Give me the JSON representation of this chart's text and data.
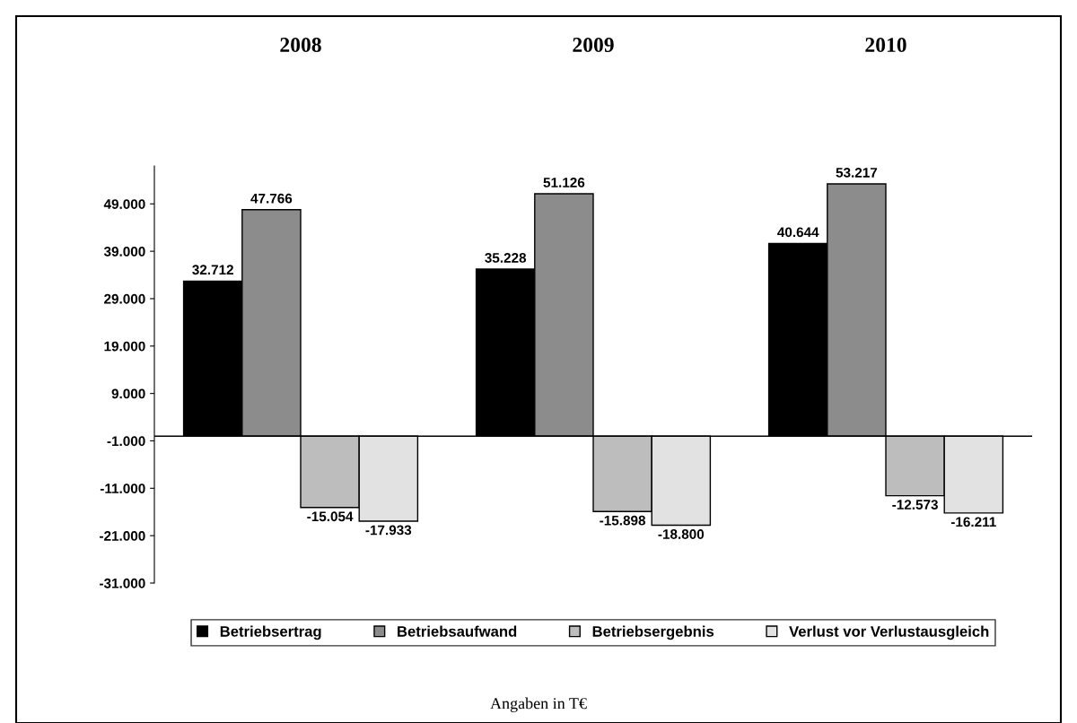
{
  "chart_data": {
    "type": "bar",
    "categories": [
      "2008",
      "2009",
      "2010"
    ],
    "series": [
      {
        "name": "Betriebsertrag",
        "color": "#000000",
        "values": [
          32712,
          35228,
          40644
        ],
        "value_labels": [
          "32.712",
          "35.228",
          "40.644"
        ]
      },
      {
        "name": "Betriebsaufwand",
        "color": "#8c8c8c",
        "values": [
          47766,
          51126,
          53217
        ],
        "value_labels": [
          "47.766",
          "51.126",
          "53.217"
        ]
      },
      {
        "name": "Betriebsergebnis",
        "color": "#bdbdbd",
        "values": [
          -15054,
          -15898,
          -12573
        ],
        "value_labels": [
          "-15.054",
          "-15.898",
          "-12.573"
        ]
      },
      {
        "name": "Verlust vor Verlustausgleich",
        "color": "#e2e2e2",
        "values": [
          -17933,
          -18800,
          -16211
        ],
        "value_labels": [
          "-17.933",
          "-18.800",
          "-16.211"
        ]
      }
    ],
    "ylim": [
      -31000,
      57000
    ],
    "yticks": [
      {
        "value": -31000,
        "label": "-31.000"
      },
      {
        "value": -21000,
        "label": "-21.000"
      },
      {
        "value": -11000,
        "label": "-11.000"
      },
      {
        "value": -1000,
        "label": "-1.000"
      },
      {
        "value": 9000,
        "label": "9.000"
      },
      {
        "value": 19000,
        "label": "19.000"
      },
      {
        "value": 29000,
        "label": "29.000"
      },
      {
        "value": 39000,
        "label": "39.000"
      },
      {
        "value": 49000,
        "label": "49.000"
      }
    ],
    "grid": false,
    "legend": "bottom",
    "annotations": [
      "Angaben in T€"
    ]
  }
}
